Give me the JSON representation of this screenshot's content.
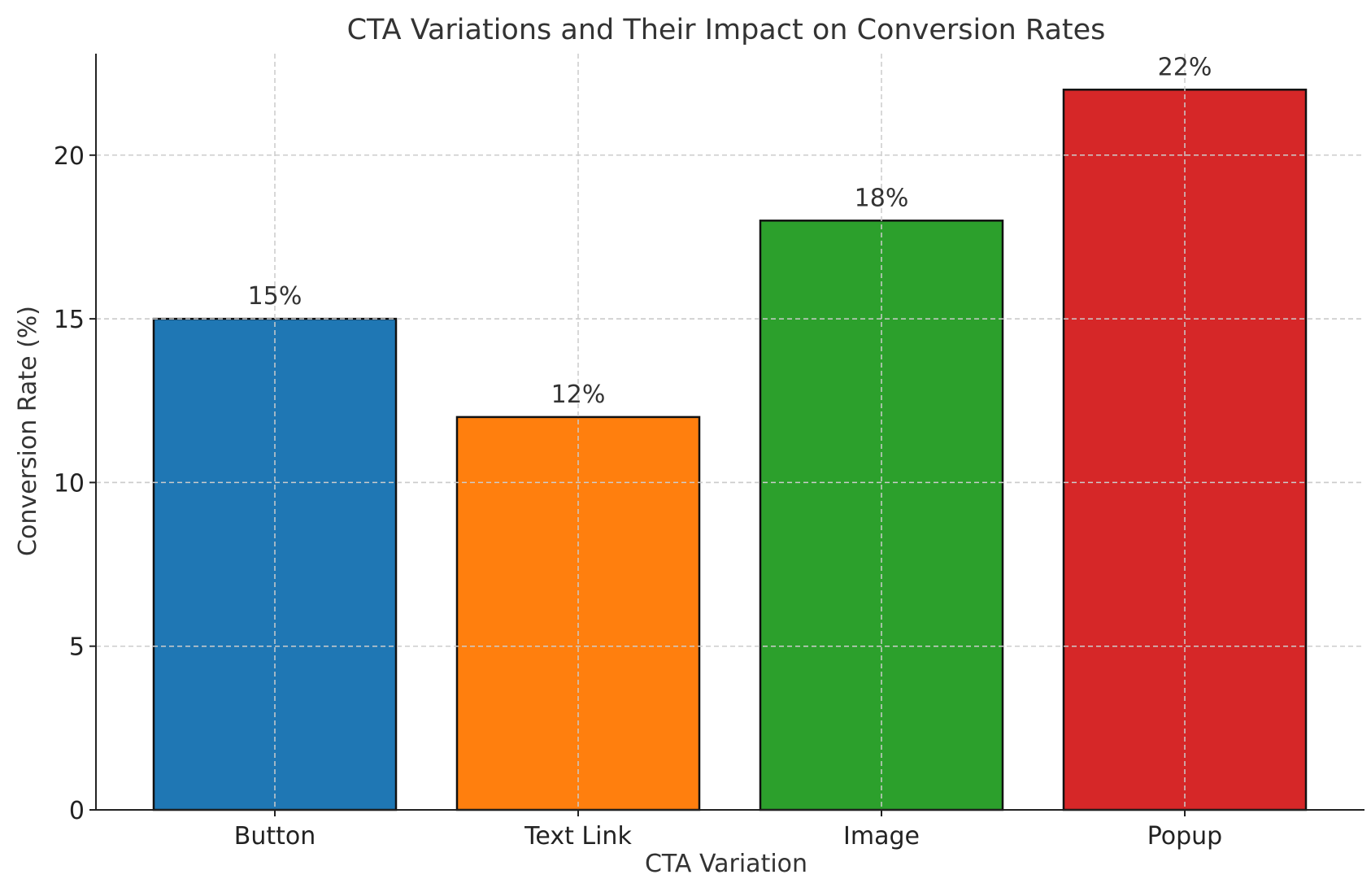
{
  "chart_data": {
    "type": "bar",
    "title": "CTA Variations and Their Impact on Conversion Rates",
    "xlabel": "CTA Variation",
    "ylabel": "Conversion Rate (%)",
    "categories": [
      "Button",
      "Text Link",
      "Image",
      "Popup"
    ],
    "values": [
      15,
      12,
      18,
      22
    ],
    "data_labels": [
      "15%",
      "12%",
      "18%",
      "22%"
    ],
    "colors": [
      "#1f77b4",
      "#ff7f0e",
      "#2ca02c",
      "#d62728"
    ],
    "ylim": [
      0,
      23.1
    ],
    "yticks": [
      0,
      5,
      10,
      15,
      20
    ],
    "ytick_labels": [
      "0",
      "5",
      "10",
      "15",
      "20"
    ],
    "grid": true,
    "legend": "none"
  }
}
